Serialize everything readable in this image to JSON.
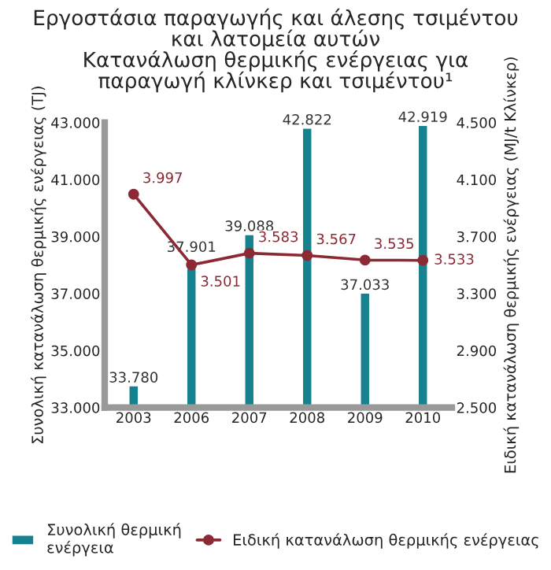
{
  "chart_data": {
    "type": "bar",
    "title": "Εργοστάσια παραγωγής και άλεσης τσιμέντου\nκαι λατομεία αυτών\nΚατανάλωση θερμικής ενέργειας για\nπαραγωγή κλίνκερ και τσιμέντου¹",
    "ylabel": "Συνολική κατανάλωση θερμικής ενέργειας (TJ)",
    "y2label": "Ειδική κατανάλωση θερμικής ενέργειας (MJ/t Κλίνκερ)",
    "categories": [
      "2003",
      "2006",
      "2007",
      "2008",
      "2009",
      "2010"
    ],
    "series": [
      {
        "name": "Συνολική θερμική\nενέργεια",
        "color": "#16828f",
        "values": [
          33780,
          37901,
          39088,
          42822,
          37033,
          42919
        ],
        "value_labels": [
          "33.780",
          "37.901",
          "39.088",
          "42.822",
          "37.033",
          "42.919"
        ]
      },
      {
        "name": "Ειδική κατανάλωση θερμικής ενέργειας",
        "type": "line",
        "axis": "y2",
        "color": "#8b2a35",
        "marker": "circle",
        "values": [
          3997,
          3501,
          3583,
          3567,
          3535,
          3533
        ],
        "value_labels": [
          "3.997",
          "3.501",
          "3.583",
          "3.567",
          "3.535",
          "3.533"
        ]
      }
    ],
    "ylim": [
      33000,
      43000
    ],
    "yticks": [
      {
        "value": 33000,
        "label": "33.000"
      },
      {
        "value": 35000,
        "label": "35.000"
      },
      {
        "value": 37000,
        "label": "37.000"
      },
      {
        "value": 39000,
        "label": "39.000"
      },
      {
        "value": 41000,
        "label": "41.000"
      },
      {
        "value": 43000,
        "label": "43.000"
      }
    ],
    "y2lim": [
      2500,
      4500
    ],
    "y2ticks": [
      {
        "value": 2500,
        "label": "2.500"
      },
      {
        "value": 2900,
        "label": "2.900"
      },
      {
        "value": 3300,
        "label": "3.300"
      },
      {
        "value": 3700,
        "label": "3.700"
      },
      {
        "value": 4100,
        "label": "4.100"
      },
      {
        "value": 4500,
        "label": "4.500"
      }
    ],
    "legend": "bottom",
    "grid": false
  }
}
